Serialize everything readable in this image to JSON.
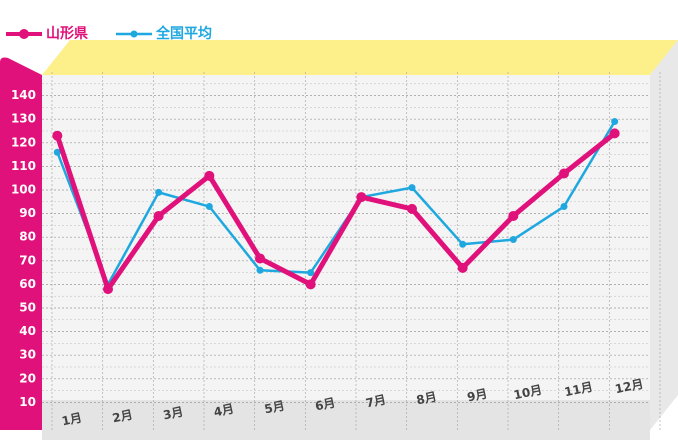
{
  "chart_data": {
    "type": "line",
    "categories": [
      "1月",
      "2月",
      "3月",
      "4月",
      "5月",
      "6月",
      "7月",
      "8月",
      "9月",
      "10月",
      "11月",
      "12月"
    ],
    "series": [
      {
        "name": "山形県",
        "color": "#e0117a",
        "values": [
          123,
          58,
          89,
          106,
          71,
          60,
          97,
          92,
          67,
          89,
          107,
          124
        ]
      },
      {
        "name": "全国平均",
        "color": "#1fa8df",
        "values": [
          116,
          60,
          99,
          93,
          66,
          65,
          97,
          101,
          77,
          79,
          93,
          129
        ]
      }
    ],
    "ylim": [
      0,
      150
    ],
    "yticks": [
      10,
      20,
      30,
      40,
      50,
      60,
      70,
      80,
      90,
      100,
      110,
      120,
      130,
      140
    ],
    "grid": true
  }
}
